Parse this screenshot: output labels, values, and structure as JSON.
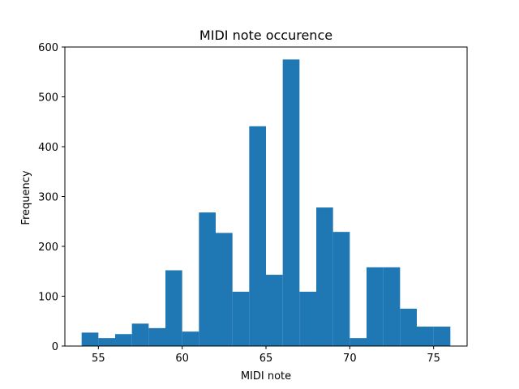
{
  "chart_data": {
    "type": "bar",
    "title": "MIDI note occurence",
    "xlabel": "MIDI note",
    "ylabel": "Frequency",
    "xlim": [
      53,
      77
    ],
    "ylim": [
      0,
      600
    ],
    "xticks": [
      55,
      60,
      65,
      70,
      75
    ],
    "yticks": [
      0,
      100,
      200,
      300,
      400,
      500,
      600
    ],
    "grid": false,
    "bar_color": "#1f77b4",
    "bins": [
      {
        "start": 54,
        "end": 55,
        "value": 27
      },
      {
        "start": 55,
        "end": 56,
        "value": 16
      },
      {
        "start": 56,
        "end": 57,
        "value": 24
      },
      {
        "start": 57,
        "end": 58,
        "value": 45
      },
      {
        "start": 58,
        "end": 59,
        "value": 36
      },
      {
        "start": 59,
        "end": 60,
        "value": 152
      },
      {
        "start": 60,
        "end": 61,
        "value": 29
      },
      {
        "start": 61,
        "end": 62,
        "value": 268
      },
      {
        "start": 62,
        "end": 63,
        "value": 227
      },
      {
        "start": 63,
        "end": 64,
        "value": 109
      },
      {
        "start": 64,
        "end": 65,
        "value": 441
      },
      {
        "start": 65,
        "end": 66,
        "value": 143
      },
      {
        "start": 66,
        "end": 67,
        "value": 575
      },
      {
        "start": 67,
        "end": 68,
        "value": 109
      },
      {
        "start": 68,
        "end": 69,
        "value": 278
      },
      {
        "start": 69,
        "end": 70,
        "value": 229
      },
      {
        "start": 70,
        "end": 71,
        "value": 16
      },
      {
        "start": 71,
        "end": 72,
        "value": 158
      },
      {
        "start": 72,
        "end": 73,
        "value": 158
      },
      {
        "start": 73,
        "end": 74,
        "value": 75
      },
      {
        "start": 74,
        "end": 75,
        "value": 39
      },
      {
        "start": 75,
        "end": 76,
        "value": 39
      }
    ]
  }
}
